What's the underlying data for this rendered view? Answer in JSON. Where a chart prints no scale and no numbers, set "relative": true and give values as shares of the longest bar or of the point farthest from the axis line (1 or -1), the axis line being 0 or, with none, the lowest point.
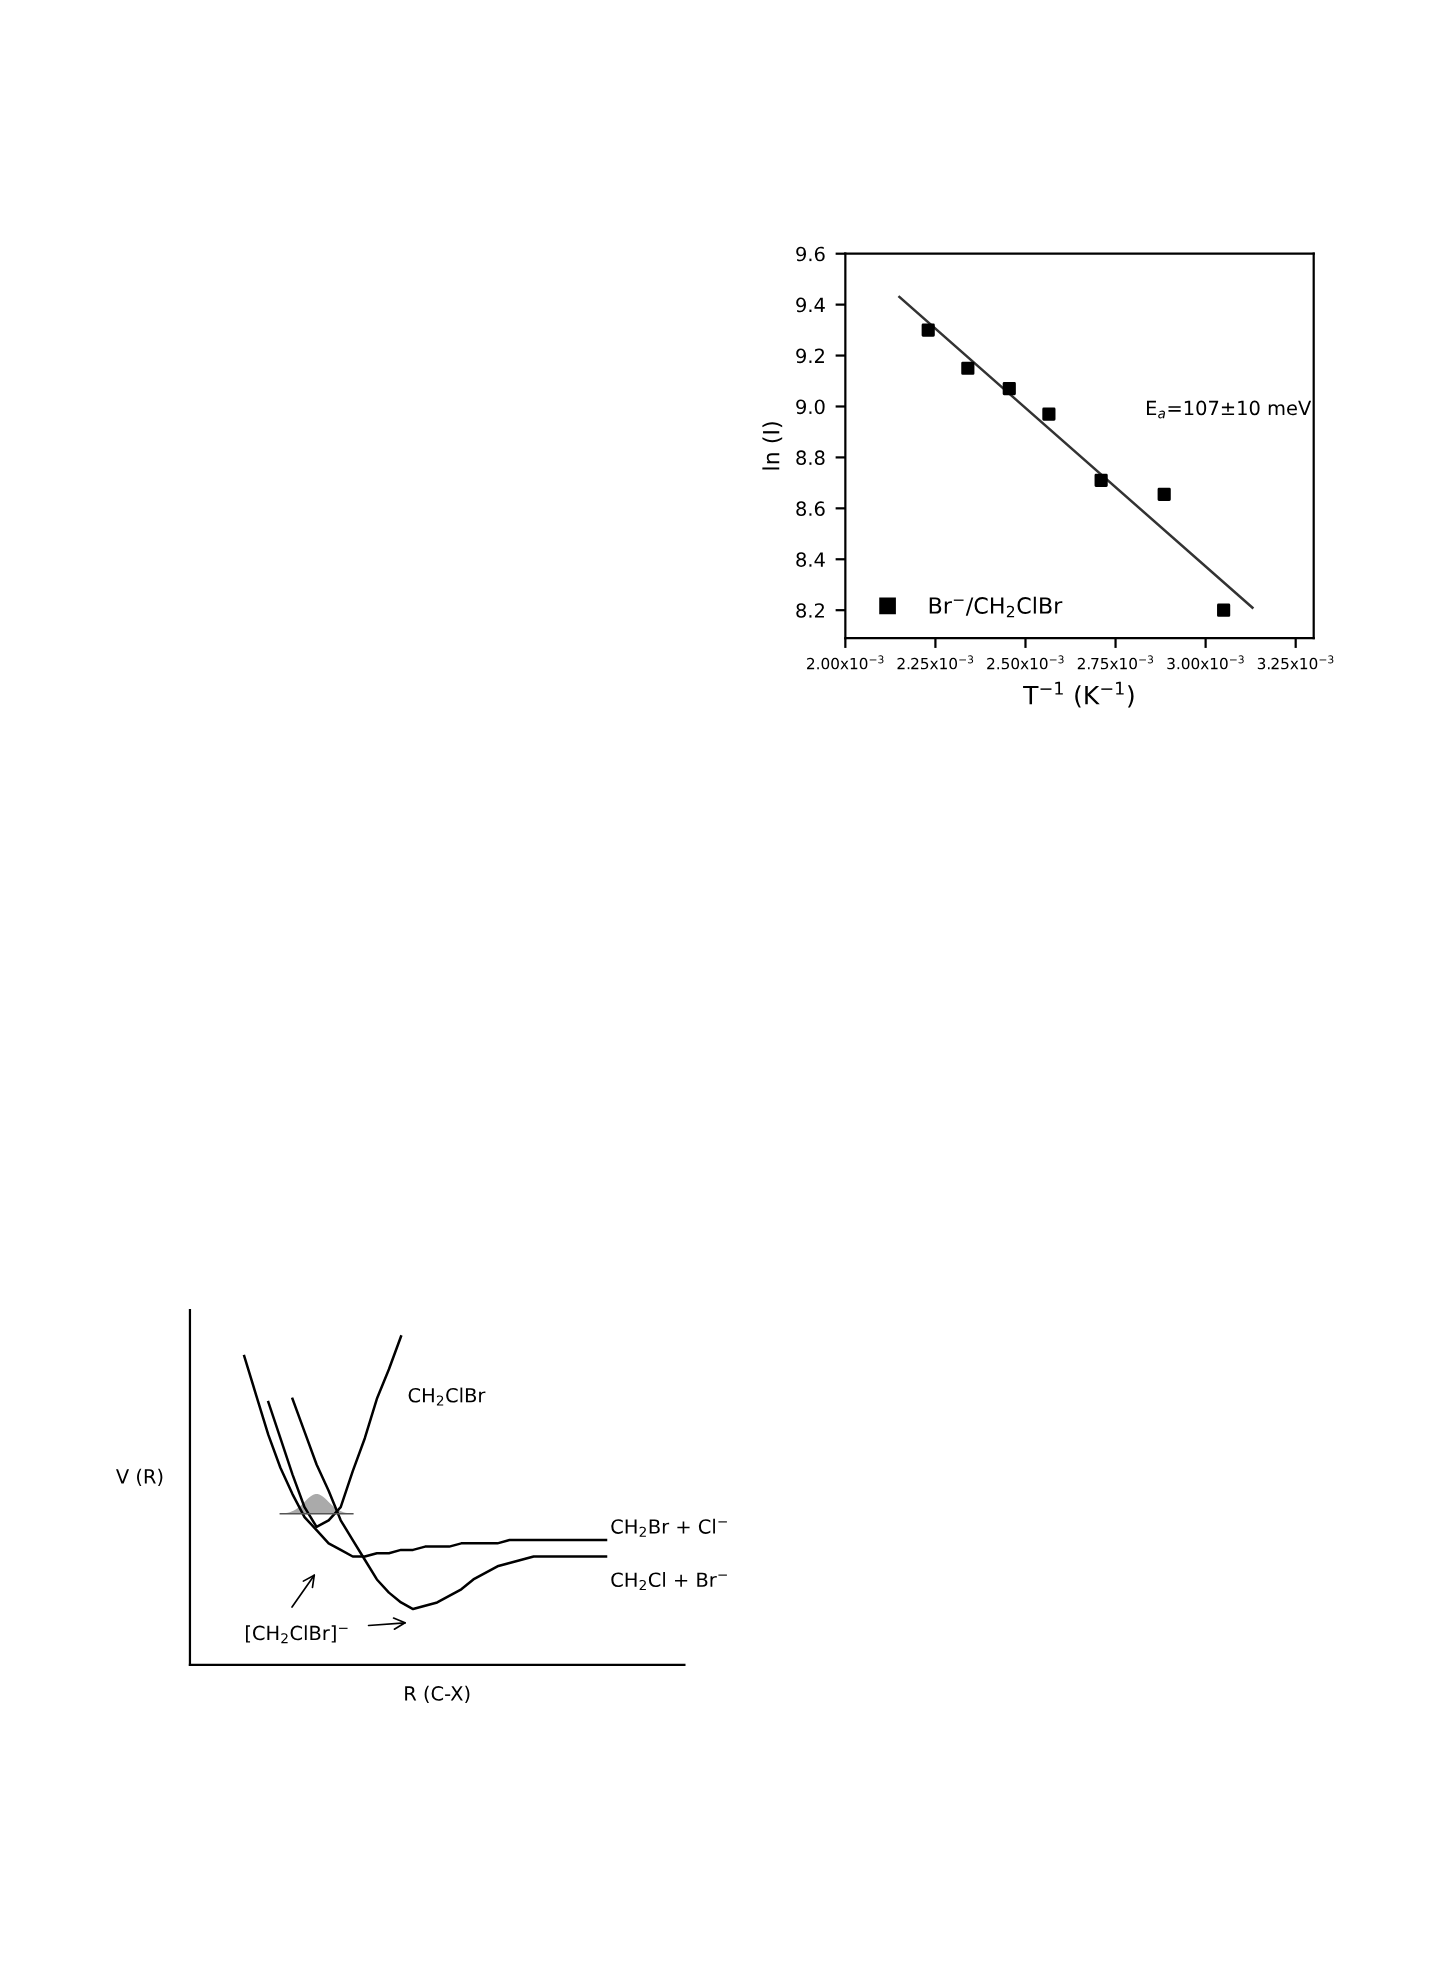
{
  "chart_data": [
    {
      "type": "scatter",
      "xlabel": "T$^{−1}$ (K$^{−1}$)",
      "ylabel": "ln (I)",
      "xlim": [
        0.002,
        0.0033
      ],
      "ylim": [
        8.09,
        9.6
      ],
      "xticks": [
        {
          "value": 0.002,
          "label": "2.00x10$^{−3}$"
        },
        {
          "value": 0.00225,
          "label": "2.25x10$^{−3}$"
        },
        {
          "value": 0.0025,
          "label": "2.50x10$^{−3}$"
        },
        {
          "value": 0.00275,
          "label": "2.75x10$^{−3}$"
        },
        {
          "value": 0.003,
          "label": "3.00x10$^{−3}$"
        },
        {
          "value": 0.00325,
          "label": "3.25x10$^{−3}$"
        }
      ],
      "yticks": [
        {
          "value": 8.2,
          "label": "8.2"
        },
        {
          "value": 8.4,
          "label": "8.4"
        },
        {
          "value": 8.6,
          "label": "8.6"
        },
        {
          "value": 8.8,
          "label": "8.8"
        },
        {
          "value": 9.0,
          "label": "9.0"
        },
        {
          "value": 9.2,
          "label": "9.2"
        },
        {
          "value": 9.4,
          "label": "9.4"
        },
        {
          "value": 9.6,
          "label": "9.6"
        }
      ],
      "series": [
        {
          "name": "Br$^{−}$/CH$_{2}$ClBr",
          "type": "scatter",
          "marker": "square",
          "color": "#000000",
          "x": [
            0.00223,
            0.00234,
            0.002455,
            0.002565,
            0.00271,
            0.002885,
            0.00305
          ],
          "values": [
            9.3,
            9.15,
            9.07,
            8.97,
            8.71,
            8.655,
            8.2
          ]
        },
        {
          "type": "line",
          "color": "#333333",
          "x": [
            0.00215,
            0.00313
          ],
          "values": [
            9.43,
            8.21
          ]
        }
      ],
      "annotations": [
        "E$_{a}$=107±10 meV"
      ],
      "legend": "bottom left",
      "grid": false
    },
    {
      "type": "line",
      "relative": true,
      "xlabel": "R (C-X)",
      "ylabel": "V (R)",
      "grid": false,
      "categories": [
        null,
        null,
        null,
        null,
        null,
        null,
        null,
        null,
        null,
        null,
        null,
        null,
        null,
        null,
        null,
        null,
        null,
        null,
        null,
        null,
        null,
        null,
        null,
        null,
        null,
        null,
        null,
        null,
        null,
        null,
        null,
        null,
        null,
        null,
        null,
        null,
        null,
        null,
        null,
        null,
        null
      ],
      "series": [
        {
          "color": "#000000",
          "values": [
            null,
            null,
            null,
            null,
            null,
            null,
            0.8,
            0.69,
            0.58,
            0.48,
            0.42,
            0.44,
            0.48,
            0.59,
            0.69,
            0.81,
            0.9,
            1.0,
            null,
            null,
            null,
            null,
            null,
            null,
            null,
            null,
            null,
            null,
            null,
            null,
            null,
            null,
            null,
            null,
            null,
            null,
            null,
            null,
            null,
            null,
            null
          ]
        },
        {
          "color": "#000000",
          "values": [
            null,
            null,
            null,
            null,
            0.94,
            0.82,
            0.7,
            0.6,
            0.52,
            0.45,
            0.41,
            0.37,
            0.35,
            0.33,
            0.33,
            0.34,
            0.34,
            0.35,
            0.35,
            0.36,
            0.36,
            0.36,
            0.37,
            0.37,
            0.37,
            0.37,
            0.38,
            0.38,
            0.38,
            0.38,
            0.38,
            0.38,
            0.38,
            0.38,
            0.38,
            null,
            null,
            null,
            null,
            null,
            null
          ]
        },
        {
          "color": "#000000",
          "values": [
            null,
            null,
            null,
            null,
            null,
            null,
            null,
            null,
            0.81,
            0.71,
            0.61,
            0.53,
            0.44,
            0.38,
            0.32,
            0.26,
            0.22,
            0.19,
            0.17,
            0.18,
            0.19,
            0.21,
            0.23,
            0.26,
            0.28,
            0.3,
            0.31,
            0.32,
            0.33,
            0.33,
            0.33,
            0.33,
            0.33,
            0.33,
            0.33,
            null,
            null,
            null,
            null,
            null,
            null
          ]
        }
      ],
      "annotations": [
        "CH$_{2}$ClBr",
        "CH$_{2}$Br + Cl$^{−}$",
        "CH$_{2}$Cl + Br$^{−}$",
        "[CH$_{2}$ClBr]$^{−}$"
      ]
    }
  ]
}
